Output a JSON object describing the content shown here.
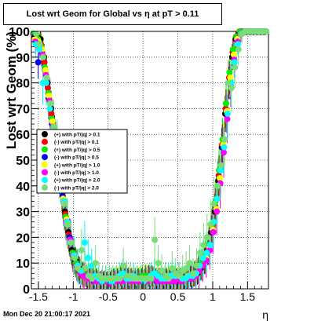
{
  "chart_data": {
    "type": "scatter",
    "title": "Lost wrt Geom for Global vs  η at pT > 0.11",
    "xlabel": "η",
    "ylabel": "Lost wrt Geom (%)",
    "xlim": [
      -1.6,
      1.8
    ],
    "ylim": [
      0,
      100
    ],
    "xticks": [
      "-1.5",
      "-1",
      "-0.5",
      "0",
      "0.5",
      "1",
      "1.5"
    ],
    "yticks": [
      "0",
      "10",
      "20",
      "30",
      "40",
      "50",
      "60",
      "70",
      "80",
      "90",
      "100"
    ],
    "grid": true,
    "legend_position": "middle-left",
    "eta_bins": [
      -1.55,
      -1.5,
      -1.45,
      -1.4,
      -1.35,
      -1.3,
      -1.25,
      -1.2,
      -1.15,
      -1.1,
      -1.05,
      -1.0,
      -0.95,
      -0.9,
      -0.85,
      -0.8,
      -0.75,
      -0.7,
      -0.65,
      -0.6,
      -0.55,
      -0.5,
      -0.45,
      -0.4,
      -0.35,
      -0.3,
      -0.25,
      -0.2,
      -0.15,
      -0.1,
      -0.05,
      0.0,
      0.05,
      0.1,
      0.15,
      0.2,
      0.25,
      0.3,
      0.35,
      0.4,
      0.45,
      0.5,
      0.55,
      0.6,
      0.65,
      0.7,
      0.75,
      0.8,
      0.85,
      0.9,
      0.95,
      1.0,
      1.05,
      1.1,
      1.15,
      1.2,
      1.25,
      1.3,
      1.35,
      1.4,
      1.45,
      1.5,
      1.55,
      1.6,
      1.65,
      1.7,
      1.75
    ],
    "series": [
      {
        "name": "(+) with pT/|q| > 0.1",
        "color": "#000000",
        "values": [
          99,
          98,
          97,
          90,
          80,
          70,
          60,
          52,
          40,
          30,
          22,
          15,
          11,
          8,
          6,
          5,
          4,
          4,
          4,
          3,
          3,
          3,
          3,
          4,
          4,
          5,
          4,
          4,
          4,
          3,
          4,
          4,
          4,
          5,
          5,
          4,
          4,
          4,
          4,
          4,
          4,
          4,
          4,
          4,
          4,
          5,
          5,
          6,
          8,
          11,
          15,
          22,
          30,
          42,
          55,
          68,
          80,
          90,
          97,
          99,
          100,
          100,
          100,
          100,
          100,
          100,
          100
        ]
      },
      {
        "name": "(-) with pT/|q| > 0.1",
        "color": "#ff0000",
        "values": [
          98,
          97,
          95,
          88,
          78,
          68,
          58,
          50,
          38,
          29,
          21,
          14,
          10,
          7,
          5,
          5,
          4,
          4,
          3,
          3,
          3,
          3,
          3,
          3,
          4,
          4,
          4,
          4,
          4,
          4,
          3,
          4,
          5,
          5,
          4,
          4,
          4,
          3,
          4,
          4,
          4,
          3,
          4,
          4,
          5,
          5,
          6,
          7,
          9,
          12,
          16,
          24,
          32,
          44,
          56,
          70,
          82,
          92,
          98,
          100,
          100,
          100,
          100,
          100,
          100,
          100,
          100
        ]
      },
      {
        "name": "(+) with pT/|q| > 0.5",
        "color": "#00ee00",
        "values": [
          99,
          97,
          94,
          86,
          76,
          66,
          57,
          48,
          37,
          28,
          20,
          14,
          10,
          7,
          6,
          5,
          4,
          4,
          4,
          3,
          3,
          3,
          4,
          4,
          4,
          5,
          5,
          4,
          4,
          4,
          4,
          5,
          5,
          5,
          4,
          4,
          4,
          4,
          4,
          3,
          4,
          4,
          4,
          4,
          5,
          5,
          6,
          8,
          10,
          13,
          17,
          25,
          34,
          46,
          58,
          72,
          84,
          93,
          98,
          100,
          100,
          100,
          100,
          100,
          100,
          100,
          100
        ]
      },
      {
        "name": "(-) with pT/|q| > 0.5",
        "color": "#0000ee",
        "values": [
          98,
          88,
          92,
          85,
          74,
          64,
          56,
          47,
          36,
          27,
          20,
          13,
          9,
          7,
          5,
          4,
          4,
          3,
          3,
          3,
          3,
          3,
          3,
          3,
          3,
          4,
          4,
          4,
          3,
          3,
          3,
          4,
          4,
          4,
          4,
          3,
          3,
          3,
          3,
          3,
          3,
          3,
          3,
          4,
          4,
          5,
          6,
          7,
          9,
          12,
          16,
          23,
          31,
          43,
          55,
          69,
          81,
          91,
          97,
          99,
          100,
          100,
          100,
          100,
          100,
          100,
          100
        ]
      },
      {
        "name": "(+) with pT/|q| > 1.0",
        "color": "#ffff00",
        "values": [
          97,
          96,
          93,
          85,
          75,
          65,
          55,
          46,
          35,
          27,
          19,
          13,
          9,
          7,
          5,
          4,
          4,
          4,
          3,
          3,
          3,
          3,
          3,
          3,
          4,
          4,
          4,
          4,
          3,
          3,
          4,
          4,
          4,
          4,
          4,
          4,
          4,
          3,
          4,
          4,
          4,
          4,
          4,
          4,
          5,
          5,
          6,
          7,
          9,
          12,
          16,
          23,
          31,
          43,
          56,
          69,
          82,
          91,
          97,
          99,
          100,
          100,
          100,
          100,
          100,
          100,
          100
        ]
      },
      {
        "name": "(-) with pT/|q| > 1.0",
        "color": "#ff00ff",
        "values": [
          96,
          94,
          91,
          83,
          73,
          63,
          54,
          45,
          34,
          26,
          19,
          13,
          9,
          6,
          5,
          4,
          4,
          3,
          3,
          3,
          3,
          2,
          3,
          3,
          3,
          3,
          4,
          3,
          3,
          3,
          3,
          3,
          3,
          4,
          4,
          3,
          3,
          3,
          3,
          3,
          3,
          3,
          3,
          4,
          4,
          4,
          5,
          7,
          9,
          11,
          15,
          22,
          30,
          41,
          53,
          66,
          79,
          89,
          96,
          99,
          100,
          100,
          100,
          100,
          100,
          100,
          100
        ]
      },
      {
        "name": "(+) with pT/|q| > 2.0",
        "color": "#00ffff",
        "values": [
          95,
          93,
          80,
          80,
          70,
          62,
          53,
          45,
          34,
          26,
          18,
          13,
          9,
          7,
          18,
          12,
          9,
          5,
          4,
          3,
          4,
          3,
          3,
          4,
          5,
          6,
          4,
          4,
          5,
          4,
          4,
          3,
          4,
          5,
          6,
          5,
          4,
          4,
          5,
          5,
          5,
          5,
          4,
          4,
          5,
          5,
          6,
          9,
          12,
          14,
          17,
          26,
          35,
          46,
          55,
          68,
          80,
          88,
          95,
          99,
          100,
          100,
          100,
          100,
          100,
          100,
          100
        ]
      },
      {
        "name": "(-) with pT/|q| > 2.0",
        "color": "#77dd77",
        "values": [
          99,
          95,
          90,
          82,
          72,
          63,
          55,
          45,
          33,
          25,
          18,
          12,
          8,
          15,
          8,
          5,
          4,
          10,
          5,
          4,
          4,
          4,
          4,
          4,
          4,
          9,
          5,
          5,
          4,
          4,
          4,
          4,
          4,
          4,
          19,
          10,
          7,
          5,
          4,
          8,
          6,
          5,
          7,
          8,
          10,
          6,
          9,
          14,
          17,
          20,
          25,
          33,
          40,
          48,
          58,
          80,
          78,
          86,
          93,
          99,
          100,
          100,
          100,
          100,
          100,
          100,
          100
        ]
      }
    ]
  },
  "footer": {
    "timestamp": "Mon Dec 20 21:00:17 2021"
  }
}
